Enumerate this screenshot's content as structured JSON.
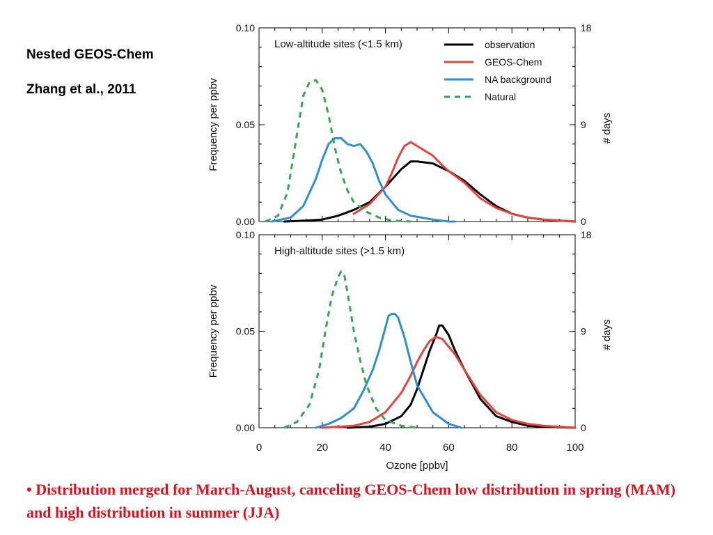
{
  "side_title_1": "Nested GEOS-Chem",
  "side_title_2": "Zhang et al., 2011",
  "caption_bullet": "•",
  "caption": "Distribution merged for March-August, canceling GEOS-Chem low distribution in spring (MAM) and high distribution in summer (JJA)",
  "caption_color": "#e0101a",
  "chart_data": [
    {
      "type": "line",
      "title": "Low-altitude sites (<1.5 km)",
      "xlabel": "Ozone [ppbv]",
      "ylabel": "Frequency per ppbv",
      "y2label": "# days",
      "xlim": [
        0,
        100
      ],
      "ylim": [
        0,
        0.1
      ],
      "y2lim": [
        0,
        18
      ],
      "xticks": [
        "0",
        "20",
        "40",
        "60",
        "80",
        "100"
      ],
      "yticks": [
        "0.00",
        "0.05",
        "0.10"
      ],
      "y2ticks": [
        "0",
        "9",
        "18"
      ],
      "legend_position": "top-right",
      "series": [
        {
          "name": "observation",
          "color": "#000000",
          "dash": "solid",
          "x": [
            8,
            15,
            20,
            25,
            30,
            35,
            40,
            45,
            48,
            50,
            55,
            60,
            65,
            70,
            75,
            80,
            85,
            90,
            95,
            100
          ],
          "y": [
            0.0,
            0.0005,
            0.001,
            0.003,
            0.006,
            0.01,
            0.018,
            0.027,
            0.031,
            0.031,
            0.03,
            0.026,
            0.021,
            0.014,
            0.008,
            0.004,
            0.002,
            0.001,
            0.0005,
            0.0
          ]
        },
        {
          "name": "GEOS-Chem",
          "color": "#e8413c",
          "dash": "solid",
          "x": [
            30,
            35,
            40,
            42,
            44,
            46,
            48,
            50,
            52,
            55,
            58,
            60,
            65,
            70,
            75,
            80,
            85,
            90,
            95,
            100
          ],
          "y": [
            0.004,
            0.009,
            0.018,
            0.025,
            0.033,
            0.039,
            0.041,
            0.039,
            0.037,
            0.034,
            0.029,
            0.026,
            0.02,
            0.012,
            0.007,
            0.004,
            0.002,
            0.001,
            0.0005,
            0.0
          ]
        },
        {
          "name": "NA background",
          "color": "#2b8fd1",
          "dash": "solid",
          "x": [
            4,
            10,
            14,
            18,
            20,
            22,
            24,
            26,
            28,
            30,
            32,
            34,
            36,
            38,
            40,
            44,
            48,
            55,
            60,
            62
          ],
          "y": [
            0.0,
            0.002,
            0.008,
            0.022,
            0.032,
            0.04,
            0.043,
            0.043,
            0.04,
            0.039,
            0.04,
            0.036,
            0.03,
            0.021,
            0.014,
            0.006,
            0.003,
            0.001,
            0.0,
            0.0
          ]
        },
        {
          "name": "Natural",
          "color": "#2fa84f",
          "dash": "dashed",
          "x": [
            2,
            6,
            9,
            12,
            14,
            16,
            18,
            20,
            22,
            24,
            26,
            28,
            30,
            34,
            38,
            42,
            48
          ],
          "y": [
            0.0,
            0.003,
            0.015,
            0.045,
            0.065,
            0.072,
            0.073,
            0.068,
            0.055,
            0.038,
            0.025,
            0.016,
            0.01,
            0.005,
            0.002,
            0.0005,
            0.0
          ]
        }
      ]
    },
    {
      "type": "line",
      "title": "High-altitude sites (>1.5 km)",
      "xlabel": "Ozone [ppbv]",
      "ylabel": "Frequency per ppbv",
      "y2label": "# days",
      "xlim": [
        0,
        100
      ],
      "ylim": [
        0,
        0.1
      ],
      "y2lim": [
        0,
        18
      ],
      "xticks": [
        "0",
        "20",
        "40",
        "60",
        "80",
        "100"
      ],
      "yticks": [
        "0.00",
        "0.05",
        "0.10"
      ],
      "y2ticks": [
        "0",
        "9",
        "18"
      ],
      "series": [
        {
          "name": "observation",
          "color": "#000000",
          "dash": "solid",
          "x": [
            28,
            35,
            40,
            45,
            48,
            50,
            52,
            54,
            56,
            57,
            58,
            60,
            62,
            65,
            70,
            75,
            80,
            85,
            90,
            95,
            100
          ],
          "y": [
            0.0,
            0.0005,
            0.002,
            0.006,
            0.012,
            0.02,
            0.03,
            0.04,
            0.048,
            0.053,
            0.053,
            0.048,
            0.04,
            0.03,
            0.015,
            0.006,
            0.003,
            0.001,
            0.0005,
            0.0002,
            0.0
          ]
        },
        {
          "name": "GEOS-Chem",
          "color": "#e8413c",
          "dash": "solid",
          "x": [
            20,
            30,
            35,
            40,
            45,
            48,
            50,
            52,
            54,
            56,
            58,
            60,
            62,
            65,
            70,
            75,
            80,
            85,
            90,
            95,
            100
          ],
          "y": [
            0.0,
            0.001,
            0.003,
            0.008,
            0.018,
            0.027,
            0.034,
            0.04,
            0.045,
            0.047,
            0.046,
            0.042,
            0.038,
            0.03,
            0.017,
            0.008,
            0.004,
            0.002,
            0.001,
            0.0005,
            0.0
          ]
        },
        {
          "name": "NA background",
          "color": "#2b8fd1",
          "dash": "solid",
          "x": [
            18,
            22,
            26,
            30,
            33,
            36,
            38,
            40,
            41,
            42,
            43,
            44,
            46,
            48,
            50,
            55,
            60,
            64
          ],
          "y": [
            0.0,
            0.002,
            0.005,
            0.01,
            0.019,
            0.03,
            0.04,
            0.052,
            0.058,
            0.059,
            0.059,
            0.057,
            0.047,
            0.034,
            0.022,
            0.008,
            0.002,
            0.0
          ]
        },
        {
          "name": "Natural",
          "color": "#2fa84f",
          "dash": "dashed",
          "x": [
            8,
            12,
            16,
            19,
            21,
            23,
            25,
            26,
            27,
            28,
            30,
            32,
            34,
            37,
            40,
            45,
            50
          ],
          "y": [
            0.0,
            0.003,
            0.012,
            0.03,
            0.05,
            0.068,
            0.078,
            0.081,
            0.079,
            0.07,
            0.05,
            0.035,
            0.022,
            0.01,
            0.004,
            0.001,
            0.0
          ]
        }
      ]
    }
  ]
}
